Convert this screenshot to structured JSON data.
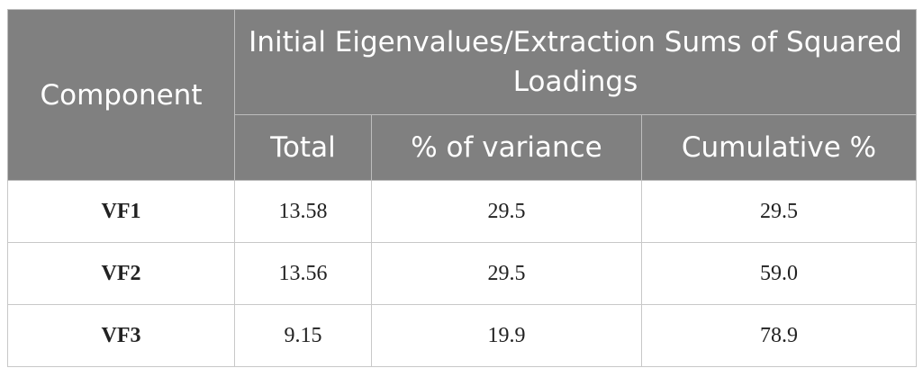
{
  "table": {
    "header": {
      "component": "Component",
      "group": "Initial Eigenvalues/Extraction Sums of Squared Loadings",
      "columns": [
        "Total",
        "% of variance",
        "Cumulative %"
      ]
    },
    "rows": [
      [
        "VF1",
        "13.58",
        "29.5",
        "29.5"
      ],
      [
        "VF2",
        "13.56",
        "29.5",
        "59.0"
      ],
      [
        "VF3",
        "9.15",
        "19.9",
        "78.9"
      ]
    ]
  }
}
